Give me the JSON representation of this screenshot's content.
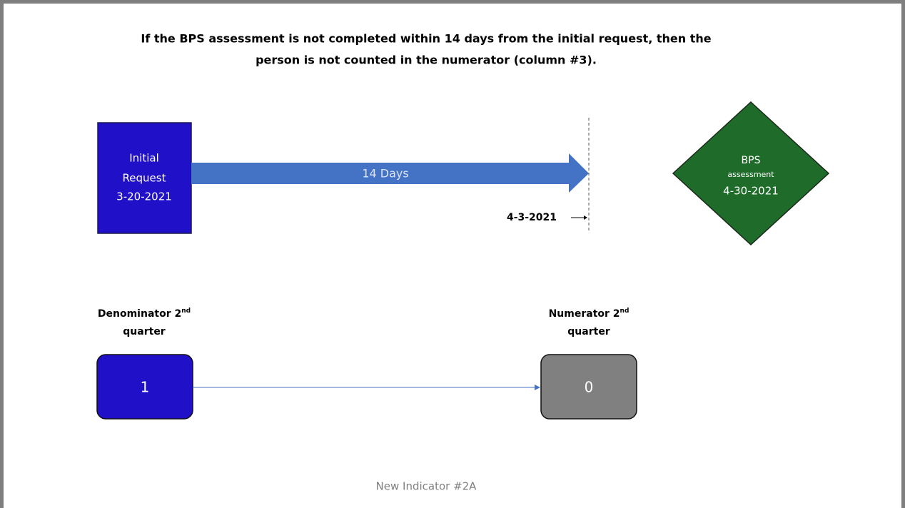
{
  "title": {
    "line1": "If the BPS assessment is not completed within 14 days from the initial request, then the",
    "line2": "person is not counted in the numerator (column #3)."
  },
  "initial_request": {
    "lines": [
      "Initial",
      "Request",
      "3-20-2021"
    ]
  },
  "interval": {
    "label": "14 Days",
    "deadline": "4-3-2021"
  },
  "bps_assessment": {
    "line1": "BPS",
    "line2": "assessment",
    "line3": "4-30-2021"
  },
  "denominator": {
    "label": "Denominator 2",
    "superscript": "nd",
    "line2": "quarter",
    "value": "1"
  },
  "numerator": {
    "label": "Numerator 2",
    "superscript": "nd",
    "line2": "quarter",
    "value": "0"
  },
  "footer": "New Indicator #2A"
}
